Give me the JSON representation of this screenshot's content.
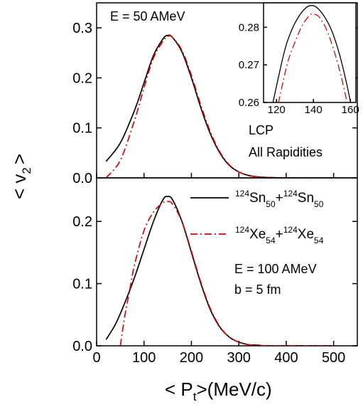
{
  "chart_data": [
    {
      "type": "line",
      "panel": "top",
      "annotation_energy": "E = 50 AMeV",
      "annotation_particle": "LCP",
      "annotation_rapidity": "All Rapidities",
      "xlim": [
        0,
        550
      ],
      "ylim": [
        0,
        0.35
      ],
      "xticks": [
        0,
        100,
        200,
        300,
        400,
        500
      ],
      "yticks": [
        0.0,
        0.1,
        0.2,
        0.3
      ],
      "ytick_labels": [
        "0.0",
        "0.1",
        "0.2",
        "0.3"
      ],
      "series": [
        {
          "color": "#000000",
          "style": "solid",
          "x": [
            20,
            50,
            80,
            100,
            120,
            140,
            150,
            160,
            180,
            200,
            220,
            240,
            260,
            280,
            300,
            320,
            340,
            360,
            400,
            450,
            500
          ],
          "y": [
            0.033,
            0.07,
            0.135,
            0.19,
            0.245,
            0.278,
            0.285,
            0.281,
            0.252,
            0.2,
            0.14,
            0.088,
            0.05,
            0.025,
            0.012,
            0.005,
            0.002,
            0.001,
            0.0,
            0.0,
            0.0
          ]
        },
        {
          "color": "#dd0000",
          "style": "dashdot",
          "x": [
            20,
            50,
            80,
            100,
            120,
            140,
            150,
            160,
            180,
            200,
            220,
            240,
            260,
            280,
            300,
            320,
            340,
            360,
            400,
            450,
            500
          ],
          "y": [
            0.0,
            0.035,
            0.115,
            0.18,
            0.24,
            0.273,
            0.283,
            0.281,
            0.255,
            0.205,
            0.145,
            0.092,
            0.052,
            0.026,
            0.012,
            0.005,
            0.002,
            0.001,
            0.0,
            0.0,
            0.0
          ]
        }
      ],
      "inset": {
        "xlim": [
          113,
          163
        ],
        "ylim": [
          0.26,
          0.2865
        ],
        "xticks": [
          120,
          140,
          160
        ],
        "yticks": [
          0.26,
          0.27,
          0.28
        ],
        "series": [
          {
            "color": "#000000",
            "style": "solid",
            "x": [
              118,
              124,
              128,
              132,
              136,
              139,
              142,
              146,
              150,
              154,
              158,
              161
            ],
            "y": [
              0.2598,
              0.273,
              0.279,
              0.2828,
              0.2852,
              0.2858,
              0.2852,
              0.2828,
              0.279,
              0.273,
              0.265,
              0.2578
            ]
          },
          {
            "color": "#dd0000",
            "style": "dashdot",
            "x": [
              121,
              126,
              130,
              134,
              138,
              140,
              143,
              147,
              151,
              155,
              158,
              160
            ],
            "y": [
              0.2598,
              0.2705,
              0.276,
              0.2805,
              0.2832,
              0.2835,
              0.2828,
              0.2795,
              0.274,
              0.267,
              0.2605,
              0.2558
            ]
          }
        ]
      }
    },
    {
      "type": "line",
      "panel": "bottom",
      "annotation_energy": "E = 100 AMeV",
      "annotation_impact": "b = 5 fm",
      "xlim": [
        0,
        550
      ],
      "ylim": [
        0,
        0.27
      ],
      "xticks": [
        0,
        100,
        200,
        300,
        400,
        500
      ],
      "xtick_labels": [
        "0",
        "100",
        "200",
        "300",
        "400",
        "500"
      ],
      "yticks": [
        0.0,
        0.1,
        0.2
      ],
      "ytick_labels": [
        "0.0",
        "0.1",
        "0.2"
      ],
      "series": [
        {
          "color": "#000000",
          "style": "solid",
          "x": [
            20,
            40,
            60,
            80,
            100,
            120,
            140,
            150,
            160,
            180,
            200,
            220,
            240,
            260,
            280,
            300,
            320,
            340,
            360,
            400,
            450,
            500
          ],
          "y": [
            0.01,
            0.035,
            0.07,
            0.11,
            0.155,
            0.2,
            0.235,
            0.24,
            0.235,
            0.2,
            0.15,
            0.1,
            0.058,
            0.03,
            0.014,
            0.006,
            0.002,
            0.001,
            0.0,
            0.0,
            0.0,
            0.0
          ]
        },
        {
          "color": "#dd0000",
          "style": "dashdot",
          "x": [
            50,
            60,
            70,
            80,
            100,
            120,
            140,
            150,
            160,
            180,
            200,
            220,
            240,
            260,
            280,
            300,
            320,
            340,
            360,
            400,
            450,
            500
          ],
          "y": [
            0.0,
            0.05,
            0.09,
            0.13,
            0.185,
            0.215,
            0.23,
            0.232,
            0.228,
            0.2,
            0.152,
            0.102,
            0.06,
            0.031,
            0.014,
            0.006,
            0.002,
            0.001,
            0.0,
            0.0,
            0.0,
            0.0
          ]
        }
      ]
    }
  ],
  "legend": {
    "entries": [
      {
        "color": "#000000",
        "style": "solid",
        "sup1": "124",
        "el1": "Sn",
        "sub1": "50",
        "plus": "+",
        "sup2": "124",
        "el2": "Sn",
        "sub2": "50"
      },
      {
        "color": "#dd0000",
        "style": "dashdot",
        "sup1": "124",
        "el1": "Xe",
        "sub1": "54",
        "plus": "+",
        "sup2": "124",
        "el2": "Xe",
        "sub2": "54"
      }
    ]
  },
  "axes": {
    "y_label_main": "< v",
    "y_label_sub": "2",
    "y_label_end": ">",
    "x_label_main": "< P",
    "x_label_sub": "t",
    "x_label_end": ">(MeV/c)"
  }
}
